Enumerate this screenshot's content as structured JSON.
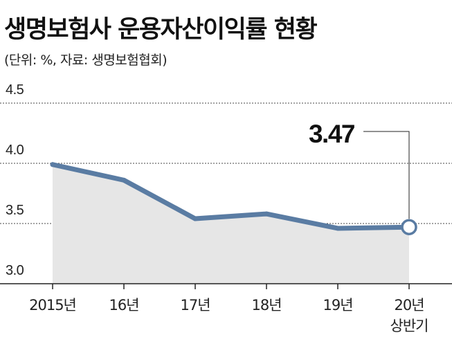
{
  "header": {
    "title": "생명보험사 운용자산이익률 현황",
    "subtitle": "(단위: %, 자료: 생명보험협회)"
  },
  "chart_data": {
    "type": "area",
    "title": "생명보험사 운용자산이익률 현황",
    "subtitle": "(단위: %, 자료: 생명보험협회)",
    "categories": [
      "2015년",
      "16년",
      "17년",
      "18년",
      "19년",
      "20년 상반기"
    ],
    "category_lines": [
      [
        "2015년"
      ],
      [
        "16년"
      ],
      [
        "17년"
      ],
      [
        "18년"
      ],
      [
        "19년"
      ],
      [
        "20년",
        "상반기"
      ]
    ],
    "values": [
      3.99,
      3.86,
      3.54,
      3.58,
      3.46,
      3.47
    ],
    "yticks": [
      "4.5",
      "4.0",
      "3.5",
      "3.0"
    ],
    "ytick_values": [
      4.5,
      4.0,
      3.5,
      3.0
    ],
    "ylim": [
      3.0,
      4.5
    ],
    "grid": true,
    "annotation": {
      "index": 5,
      "label": "3.47"
    },
    "colors": {
      "line": "#5a7ca3",
      "fill": "#e6e6e6",
      "grid": "#444444",
      "marker_fill": "#ffffff"
    }
  }
}
